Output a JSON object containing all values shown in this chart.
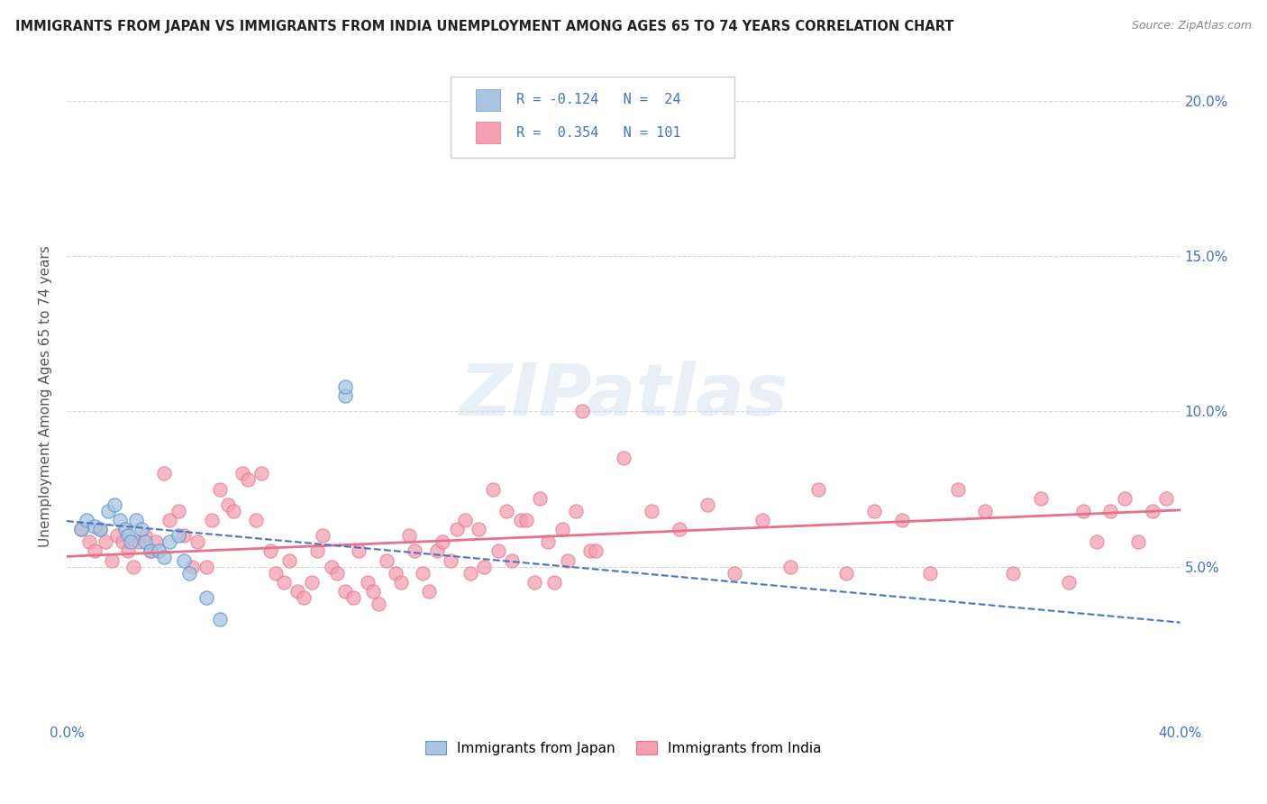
{
  "title": "IMMIGRANTS FROM JAPAN VS IMMIGRANTS FROM INDIA UNEMPLOYMENT AMONG AGES 65 TO 74 YEARS CORRELATION CHART",
  "source": "Source: ZipAtlas.com",
  "ylabel": "Unemployment Among Ages 65 to 74 years",
  "xlim": [
    0.0,
    0.4
  ],
  "ylim": [
    0.0,
    0.21
  ],
  "xticks": [
    0.0,
    0.05,
    0.1,
    0.15,
    0.2,
    0.25,
    0.3,
    0.35,
    0.4
  ],
  "xticklabels": [
    "0.0%",
    "",
    "",
    "",
    "",
    "",
    "",
    "",
    "40.0%"
  ],
  "yticks": [
    0.0,
    0.05,
    0.1,
    0.15,
    0.2
  ],
  "yticklabels_right": [
    "",
    "5.0%",
    "10.0%",
    "15.0%",
    "20.0%"
  ],
  "japan_R": -0.124,
  "japan_N": 24,
  "india_R": 0.354,
  "india_N": 101,
  "japan_color": "#aac4e0",
  "india_color": "#f4a0b0",
  "japan_edge_color": "#5b9bd5",
  "india_edge_color": "#e8708a",
  "japan_line_color": "#4472c4",
  "india_line_color": "#e8708a",
  "background_color": "#ffffff",
  "grid_color": "#cccccc",
  "watermark": "ZIPatlas",
  "japan_x": [
    0.005,
    0.007,
    0.01,
    0.012,
    0.015,
    0.017,
    0.019,
    0.021,
    0.022,
    0.023,
    0.025,
    0.027,
    0.028,
    0.03,
    0.033,
    0.035,
    0.037,
    0.04,
    0.042,
    0.044,
    0.05,
    0.055,
    0.1,
    0.1
  ],
  "japan_y": [
    0.062,
    0.065,
    0.063,
    0.062,
    0.068,
    0.07,
    0.065,
    0.062,
    0.06,
    0.058,
    0.065,
    0.062,
    0.058,
    0.055,
    0.055,
    0.053,
    0.058,
    0.06,
    0.052,
    0.048,
    0.04,
    0.033,
    0.105,
    0.108
  ],
  "india_x": [
    0.005,
    0.008,
    0.01,
    0.012,
    0.014,
    0.016,
    0.018,
    0.02,
    0.022,
    0.024,
    0.026,
    0.028,
    0.03,
    0.032,
    0.035,
    0.037,
    0.04,
    0.042,
    0.045,
    0.047,
    0.05,
    0.052,
    0.055,
    0.058,
    0.06,
    0.063,
    0.065,
    0.068,
    0.07,
    0.073,
    0.075,
    0.078,
    0.08,
    0.083,
    0.085,
    0.088,
    0.09,
    0.092,
    0.095,
    0.097,
    0.1,
    0.103,
    0.105,
    0.108,
    0.11,
    0.112,
    0.115,
    0.118,
    0.12,
    0.123,
    0.125,
    0.128,
    0.13,
    0.133,
    0.135,
    0.138,
    0.14,
    0.143,
    0.145,
    0.148,
    0.15,
    0.153,
    0.155,
    0.158,
    0.16,
    0.163,
    0.165,
    0.168,
    0.17,
    0.173,
    0.175,
    0.178,
    0.18,
    0.183,
    0.185,
    0.188,
    0.19,
    0.2,
    0.21,
    0.22,
    0.23,
    0.24,
    0.25,
    0.26,
    0.27,
    0.28,
    0.29,
    0.3,
    0.31,
    0.32,
    0.33,
    0.34,
    0.35,
    0.36,
    0.365,
    0.37,
    0.375,
    0.38,
    0.385,
    0.39,
    0.395
  ],
  "india_y": [
    0.062,
    0.058,
    0.055,
    0.062,
    0.058,
    0.052,
    0.06,
    0.058,
    0.055,
    0.05,
    0.058,
    0.06,
    0.055,
    0.058,
    0.08,
    0.065,
    0.068,
    0.06,
    0.05,
    0.058,
    0.05,
    0.065,
    0.075,
    0.07,
    0.068,
    0.08,
    0.078,
    0.065,
    0.08,
    0.055,
    0.048,
    0.045,
    0.052,
    0.042,
    0.04,
    0.045,
    0.055,
    0.06,
    0.05,
    0.048,
    0.042,
    0.04,
    0.055,
    0.045,
    0.042,
    0.038,
    0.052,
    0.048,
    0.045,
    0.06,
    0.055,
    0.048,
    0.042,
    0.055,
    0.058,
    0.052,
    0.062,
    0.065,
    0.048,
    0.062,
    0.05,
    0.075,
    0.055,
    0.068,
    0.052,
    0.065,
    0.065,
    0.045,
    0.072,
    0.058,
    0.045,
    0.062,
    0.052,
    0.068,
    0.1,
    0.055,
    0.055,
    0.085,
    0.068,
    0.062,
    0.07,
    0.048,
    0.065,
    0.05,
    0.075,
    0.048,
    0.068,
    0.065,
    0.048,
    0.075,
    0.068,
    0.048,
    0.072,
    0.045,
    0.068,
    0.058,
    0.068,
    0.072,
    0.058,
    0.068,
    0.072
  ]
}
